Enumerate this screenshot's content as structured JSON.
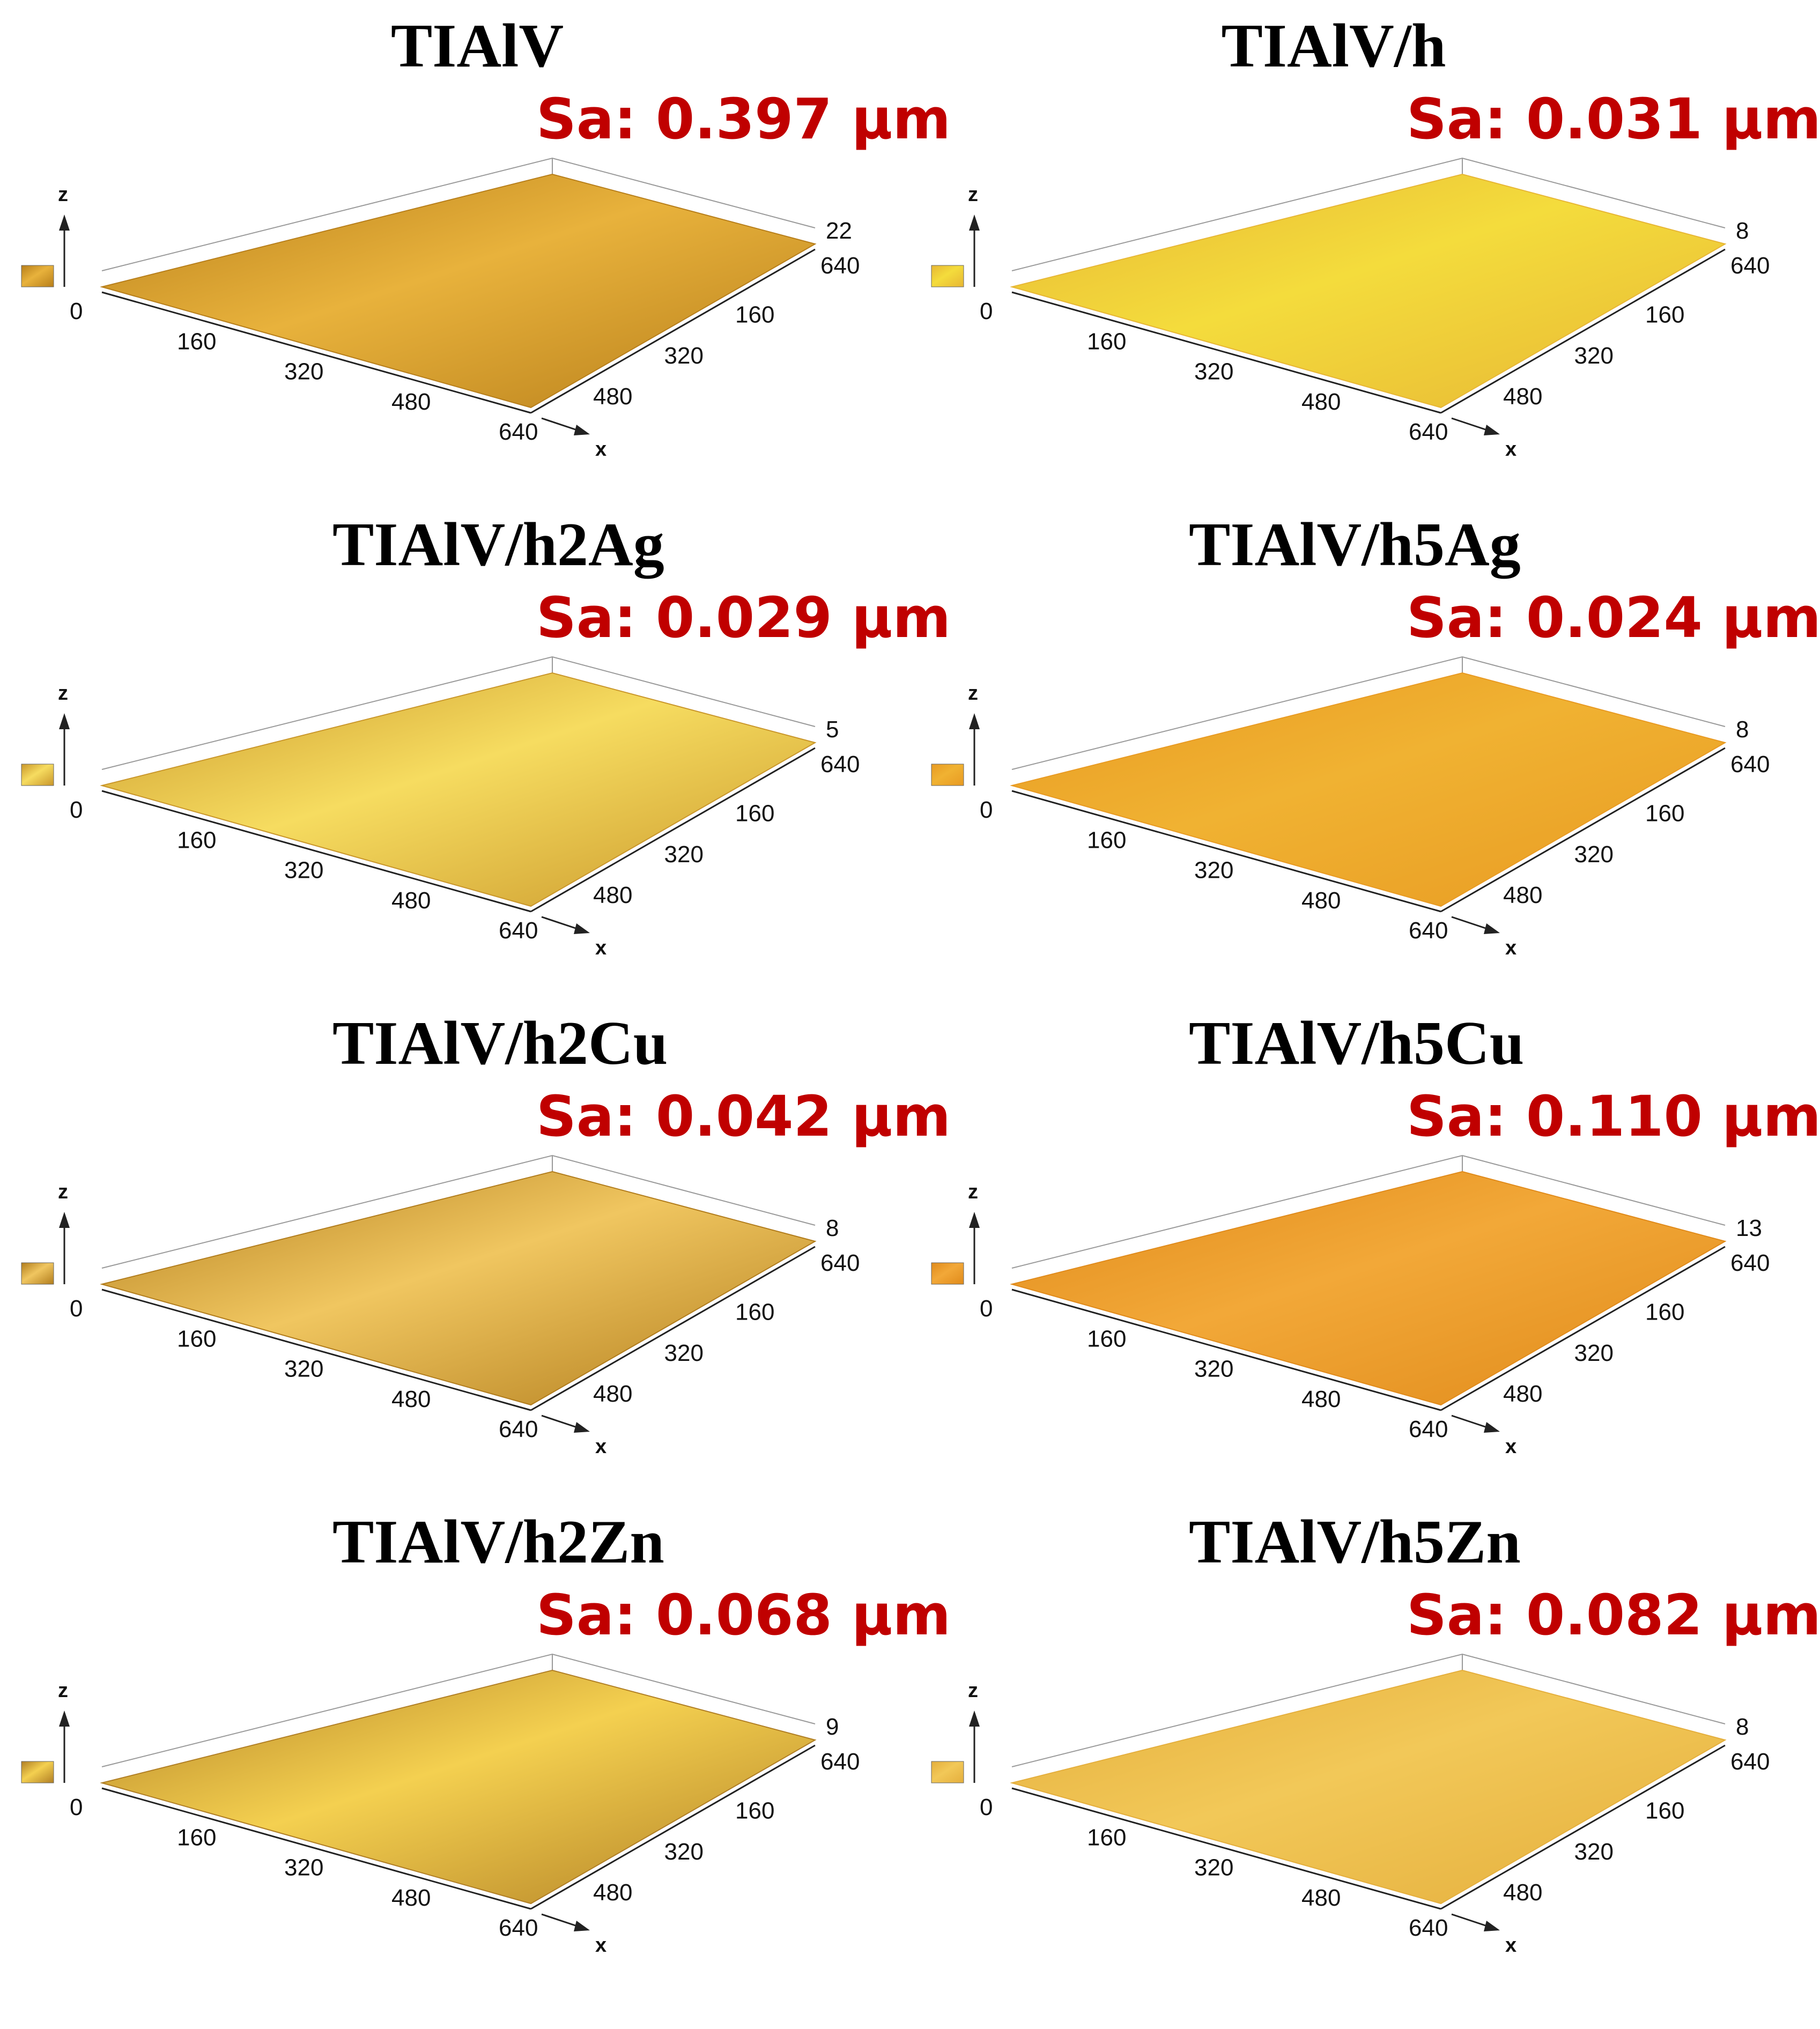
{
  "figure": {
    "panels": [
      {
        "title": "TIAlV",
        "sa": "Sa: 0.397 μm",
        "z_max": "22",
        "x_ticks": [
          "0",
          "160",
          "320",
          "480",
          "640"
        ],
        "y_ticks": [
          "640",
          "160",
          "320",
          "480"
        ],
        "z_label": "z",
        "x_label": "x",
        "colors": {
          "light": "#e8b23c",
          "dark": "#b77e1a"
        }
      },
      {
        "title": "TIAlV/h",
        "sa": "Sa: 0.031 μm",
        "z_max": "8",
        "x_ticks": [
          "0",
          "160",
          "320",
          "480",
          "640"
        ],
        "y_ticks": [
          "640",
          "160",
          "320",
          "480"
        ],
        "z_label": "z",
        "x_label": "x",
        "colors": {
          "light": "#f4dc3c",
          "dark": "#e7b634"
        }
      },
      {
        "title": "TIAlV/h2Ag",
        "sa": "Sa: 0.029 μm",
        "z_max": "5",
        "x_ticks": [
          "0",
          "160",
          "320",
          "480",
          "640"
        ],
        "y_ticks": [
          "640",
          "160",
          "320",
          "480"
        ],
        "z_label": "z",
        "x_label": "x",
        "colors": {
          "light": "#f6dc60",
          "dark": "#c9962a"
        }
      },
      {
        "title": "TIAlV/h5Ag",
        "sa": "Sa: 0.024 μm",
        "z_max": "8",
        "x_ticks": [
          "0",
          "160",
          "320",
          "480",
          "640"
        ],
        "y_ticks": [
          "640",
          "160",
          "320",
          "480"
        ],
        "z_label": "z",
        "x_label": "x",
        "colors": {
          "light": "#f0b232",
          "dark": "#e89a22"
        }
      },
      {
        "title": "TIAlV/h2Cu",
        "sa": "Sa: 0.042 μm",
        "z_max": "8",
        "x_ticks": [
          "0",
          "160",
          "320",
          "480",
          "640"
        ],
        "y_ticks": [
          "640",
          "160",
          "320",
          "480"
        ],
        "z_label": "z",
        "x_label": "x",
        "colors": {
          "light": "#f0c660",
          "dark": "#b17c1c"
        }
      },
      {
        "title": "TIAlV/h5Cu",
        "sa": "Sa: 0.110 μm",
        "z_max": "13",
        "x_ticks": [
          "0",
          "160",
          "320",
          "480",
          "640"
        ],
        "y_ticks": [
          "640",
          "160",
          "320",
          "480"
        ],
        "z_label": "z",
        "x_label": "x",
        "colors": {
          "light": "#f2a838",
          "dark": "#e08a1a"
        }
      },
      {
        "title": "TIAlV/h2Zn",
        "sa": "Sa: 0.068 μm",
        "z_max": "9",
        "x_ticks": [
          "0",
          "160",
          "320",
          "480",
          "640"
        ],
        "y_ticks": [
          "640",
          "160",
          "320",
          "480"
        ],
        "z_label": "z",
        "x_label": "x",
        "colors": {
          "light": "#f4d050",
          "dark": "#b07e24"
        }
      },
      {
        "title": "TIAlV/h5Zn",
        "sa": "Sa: 0.082 μm",
        "z_max": "8",
        "x_ticks": [
          "0",
          "160",
          "320",
          "480",
          "640"
        ],
        "y_ticks": [
          "640",
          "160",
          "320",
          "480"
        ],
        "z_label": "z",
        "x_label": "x",
        "colors": {
          "light": "#f2c858",
          "dark": "#e4ae3c"
        }
      }
    ]
  }
}
